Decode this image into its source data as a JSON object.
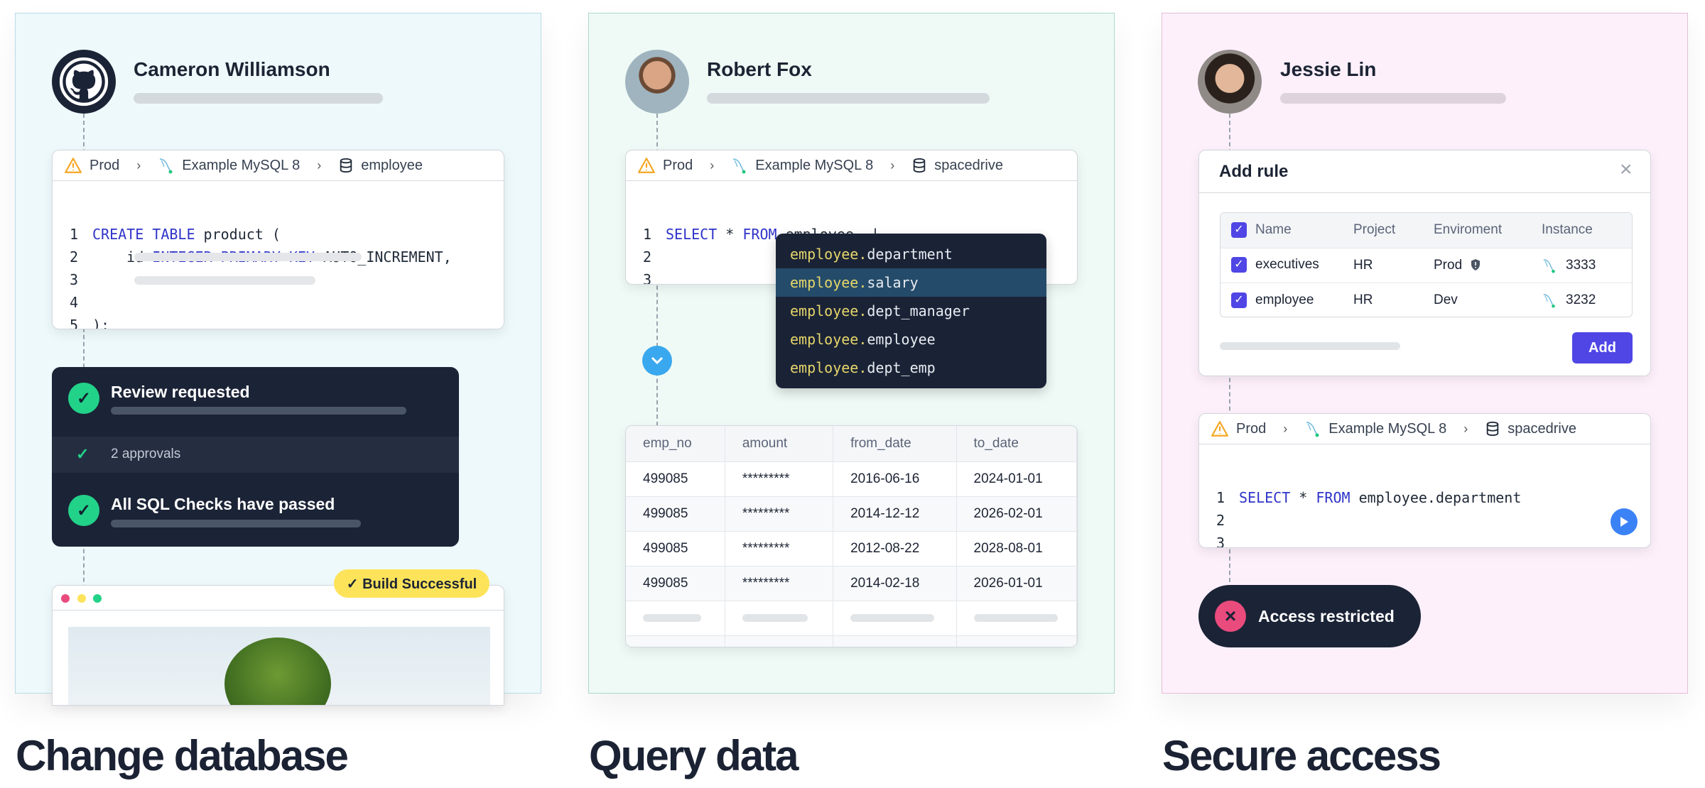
{
  "colors": {
    "accent": "#4f46e5",
    "success": "#22d289",
    "danger": "#e94b7d",
    "keyword": "#2f34c8",
    "warning": "#f5a623",
    "badge": "#fde35a"
  },
  "panels": [
    {
      "heading": "Change database",
      "user": {
        "name": "Cameron Williamson",
        "avatar": "github-icon"
      },
      "editor": {
        "breadcrumb": {
          "env": "Prod",
          "instance": "Example MySQL 8",
          "database": "employee"
        },
        "lines": [
          {
            "num": "1",
            "kw1": "CREATE TABLE",
            "rest": " product ("
          },
          {
            "num": "2",
            "pre": "    id ",
            "kw1": "INTEGER PRIMARY KEY",
            "rest": " AUTO_INCREMENT,"
          },
          {
            "num": "3"
          },
          {
            "num": "4"
          },
          {
            "num": "5",
            "rest": ");"
          }
        ]
      },
      "review": {
        "title": "Review requested",
        "approvals": "2 approvals",
        "checks": "All SQL Checks have passed"
      },
      "build_badge": "✓ Build Successful"
    },
    {
      "heading": "Query data",
      "user": {
        "name": "Robert Fox"
      },
      "editor": {
        "breadcrumb": {
          "env": "Prod",
          "instance": "Example MySQL 8",
          "database": "spacedrive"
        },
        "line1": {
          "kw1": "SELECT",
          "star": " * ",
          "kw2": "FROM",
          "rest": " employee. |"
        },
        "nums": [
          "1",
          "2",
          "3"
        ]
      },
      "autocomplete": {
        "prefix": "employee.",
        "items": [
          "department",
          "salary",
          "dept_manager",
          "employee",
          "dept_emp"
        ],
        "selected": 1
      },
      "results": {
        "columns": [
          "emp_no",
          "amount",
          "from_date",
          "to_date"
        ],
        "rows": [
          [
            "499085",
            "*********",
            "2016-06-16",
            "2024-01-01"
          ],
          [
            "499085",
            "*********",
            "2014-12-12",
            "2026-02-01"
          ],
          [
            "499085",
            "*********",
            "2012-08-22",
            "2028-08-01"
          ],
          [
            "499085",
            "*********",
            "2014-02-18",
            "2026-01-01"
          ]
        ]
      }
    },
    {
      "heading": "Secure access",
      "user": {
        "name": "Jessie Lin"
      },
      "rule_dialog": {
        "title": "Add rule",
        "columns": [
          "Name",
          "Project",
          "Enviroment",
          "Instance"
        ],
        "rows": [
          {
            "name": "executives",
            "project": "HR",
            "env": "Prod",
            "instance": "3333",
            "checked": true
          },
          {
            "name": "employee",
            "project": "HR",
            "env": "Dev",
            "instance": "3232",
            "checked": true
          }
        ],
        "add_label": "Add"
      },
      "editor": {
        "breadcrumb": {
          "env": "Prod",
          "instance": "Example MySQL 8",
          "database": "spacedrive"
        },
        "line1": {
          "kw1": "SELECT",
          "star": " * ",
          "kw2": "FROM",
          "rest": " employee.department"
        },
        "nums": [
          "1",
          "2",
          "3"
        ]
      },
      "toast": "Access restricted"
    }
  ]
}
